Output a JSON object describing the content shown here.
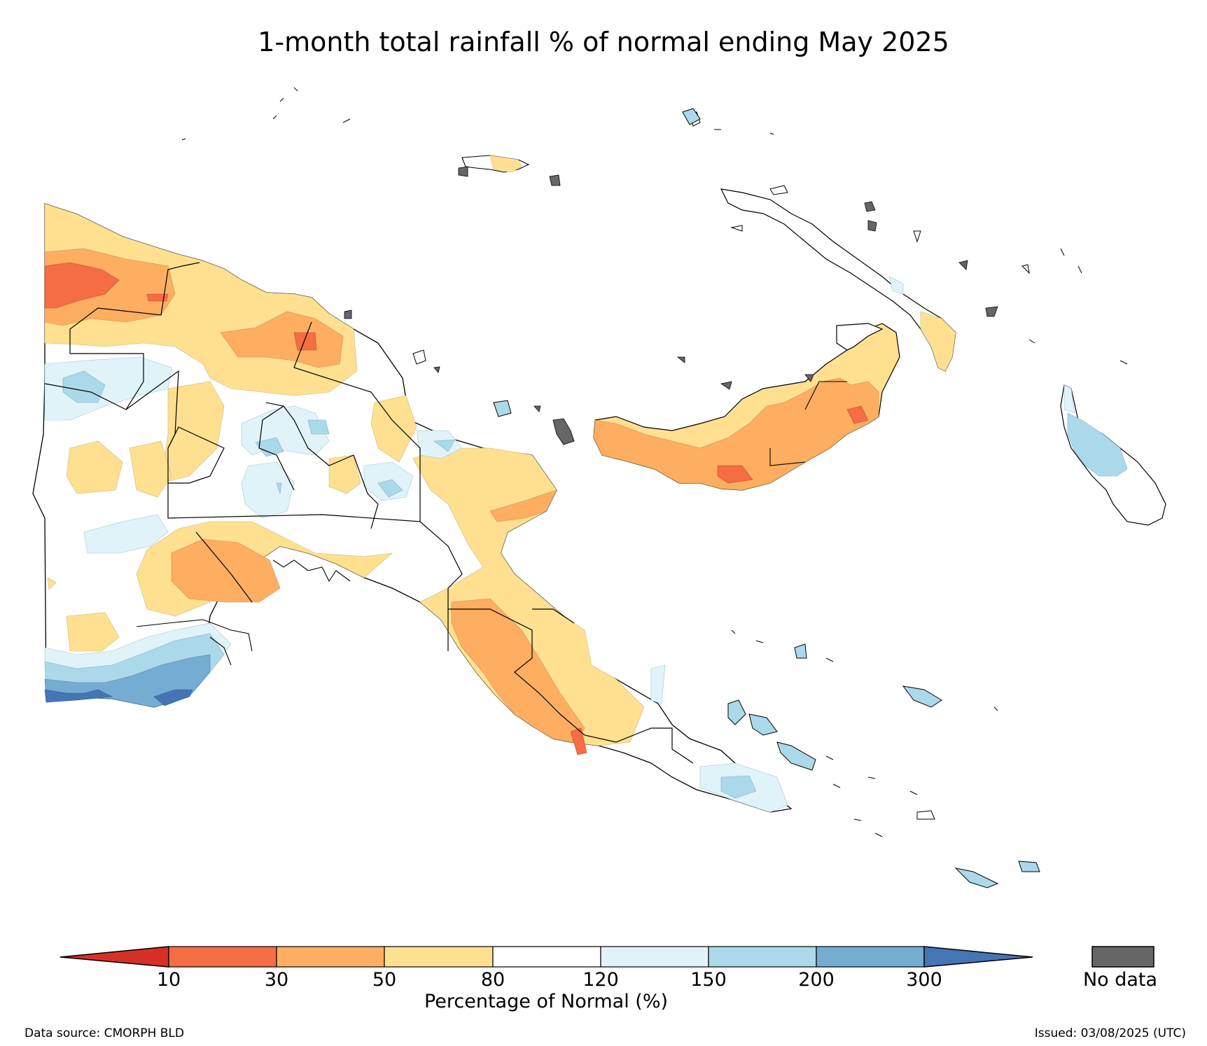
{
  "title": "1-month total rainfall % of normal ending May 2025",
  "legend": {
    "label": "Percentage of Normal (%)",
    "ticks": [
      "10",
      "30",
      "50",
      "80",
      "120",
      "150",
      "200",
      "300"
    ],
    "bins": [
      {
        "range": "<10",
        "color": "#d73027"
      },
      {
        "range": "10-30",
        "color": "#f46d43"
      },
      {
        "range": "30-50",
        "color": "#fdae61"
      },
      {
        "range": "50-80",
        "color": "#fee090"
      },
      {
        "range": "80-120",
        "color": "#ffffff"
      },
      {
        "range": "120-150",
        "color": "#e0f3f8"
      },
      {
        "range": "150-200",
        "color": "#abd9e9"
      },
      {
        "range": "200-300",
        "color": "#74add1"
      },
      {
        "range": ">300",
        "color": "#4575b4"
      }
    ],
    "no_data_label": "No data",
    "no_data_color": "#666666"
  },
  "footer": {
    "source": "Data source: CMORPH BLD",
    "issued": "Issued: 03/08/2025 (UTC)"
  }
}
